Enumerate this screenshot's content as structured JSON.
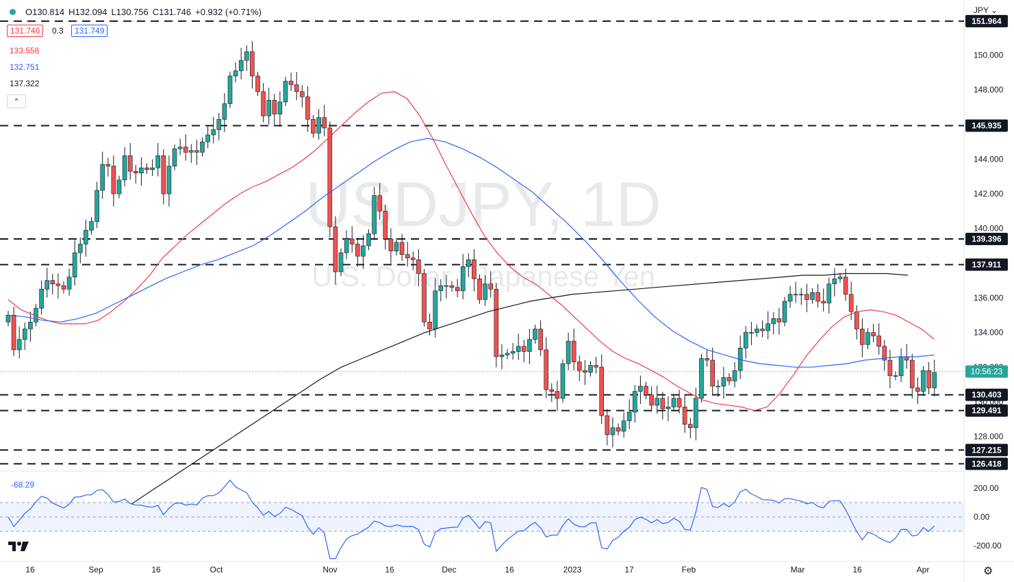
{
  "header": {
    "open": "O130.814",
    "high": "H132.094",
    "low": "L130.756",
    "close": "C131.746",
    "change": "+0.932 (+0.71%)",
    "bid": "131.746",
    "spread": "0.3",
    "ask": "131.749",
    "currency": "JPY ⌄",
    "collapse_symbol": "⌃"
  },
  "moving_averages": [
    {
      "value": "133.556",
      "color": "#f23645"
    },
    {
      "value": "132.751",
      "color": "#2962ff"
    },
    {
      "value": "137.322",
      "color": "#131722"
    }
  ],
  "watermark": {
    "symbol": "USDJPY, 1D",
    "name": "U.S. Dollar / Japanese Yen"
  },
  "countdown": "10:56:23",
  "cci_label": "-68.29",
  "colors": {
    "up": "#26a69a",
    "down": "#ef5350",
    "price_box": "#26a69a",
    "level_box": "#131722"
  },
  "chart_data": {
    "type": "candlestick",
    "y_axis": {
      "min": 126,
      "max": 152,
      "ticks": [
        "128.000",
        "130.000",
        "132.000",
        "134.000",
        "136.000",
        "138.000",
        "140.000",
        "142.000",
        "144.000",
        "146.000",
        "148.000",
        "150.000"
      ]
    },
    "x_tick_labels": [
      "16",
      "Sep",
      "16",
      "Oct",
      "Nov",
      "16",
      "Dec",
      "16",
      "2023",
      "17",
      "Feb",
      "Mar",
      "16",
      "Apr"
    ],
    "horizontal_levels": [
      "151.964",
      "145.935",
      "139.396",
      "137.911",
      "130.403",
      "129.491",
      "127.215",
      "126.418"
    ],
    "last_price": 131.746,
    "close_series": [
      135.0,
      133.0,
      133.6,
      134.2,
      134.6,
      135.4,
      136.5,
      137.0,
      136.8,
      136.7,
      136.5,
      137.2,
      138.6,
      139.1,
      139.9,
      140.4,
      142.2,
      143.7,
      143.6,
      142.0,
      142.8,
      144.2,
      143.3,
      143.2,
      143.5,
      143.4,
      143.5,
      144.2,
      142.0,
      143.6,
      144.6,
      144.7,
      144.4,
      144.5,
      144.4,
      145.0,
      145.4,
      145.7,
      146.3,
      147.2,
      148.8,
      149.1,
      149.7,
      150.2,
      148.8,
      147.9,
      146.5,
      147.4,
      146.6,
      147.3,
      148.5,
      148.3,
      147.9,
      147.6,
      146.3,
      145.5,
      146.4,
      145.8,
      140.1,
      137.5,
      138.6,
      139.4,
      139.1,
      138.4,
      139.0,
      139.7,
      141.9,
      141.0,
      139.4,
      138.7,
      139.2,
      138.5,
      138.3,
      138.2,
      137.4,
      134.6,
      134.2,
      136.4,
      136.7,
      136.7,
      136.6,
      136.4,
      137.8,
      138.2,
      137.1,
      135.9,
      136.8,
      136.5,
      132.6,
      132.7,
      132.8,
      132.9,
      133.2,
      132.9,
      133.6,
      134.2,
      133.0,
      130.7,
      130.6,
      130.2,
      132.2,
      133.5,
      132.3,
      131.8,
      131.7,
      132.1,
      132.0,
      129.2,
      128.1,
      128.5,
      128.3,
      128.9,
      129.4,
      130.6,
      130.9,
      130.4,
      129.8,
      130.2,
      129.6,
      129.7,
      130.2,
      129.7,
      128.7,
      128.5,
      130.2,
      132.5,
      132.4,
      130.9,
      130.9,
      131.4,
      131.2,
      131.8,
      133.1,
      134.0,
      134.0,
      134.2,
      134.1,
      134.5,
      134.8,
      134.6,
      135.8,
      136.2,
      136.2,
      136.2,
      135.9,
      136.3,
      135.8,
      135.7,
      136.8,
      137.1,
      137.2,
      136.2,
      135.2,
      134.2,
      133.3,
      134.0,
      133.8,
      133.2,
      132.4,
      131.5,
      131.5,
      132.6,
      132.4,
      130.8,
      130.6,
      131.8,
      130.8,
      131.7
    ],
    "sma_20": {
      "start": 0,
      "values": [
        135.9,
        135.3,
        135.0,
        134.7,
        134.5,
        134.5,
        134.5,
        134.7,
        135.2,
        135.8,
        136.5,
        137.3,
        138.3,
        139.0,
        139.7,
        140.3,
        140.9,
        141.5,
        142.0,
        142.4,
        142.7,
        143.1,
        143.5,
        144.0,
        144.6,
        145.3,
        146.0,
        146.7,
        147.3,
        147.8,
        147.9,
        147.5,
        146.5,
        145.2,
        143.7,
        142.3,
        140.9,
        139.6,
        138.6,
        137.8,
        137.2,
        136.8,
        136.2,
        135.6,
        134.9,
        134.2,
        133.5,
        132.9,
        132.5,
        132.2,
        131.8,
        131.4,
        130.9,
        130.5,
        130.1,
        129.9,
        129.8,
        129.7,
        129.5,
        129.7,
        130.5,
        131.5,
        132.6,
        133.5,
        134.3,
        134.9,
        135.2,
        135.3,
        135.2,
        135.0,
        134.6,
        134.2,
        133.6
      ]
    },
    "sma_50": {
      "start": 0,
      "values": [
        135.0,
        134.9,
        134.7,
        134.6,
        134.8,
        135.1,
        135.6,
        136.1,
        136.6,
        137.1,
        137.5,
        137.9,
        138.2,
        138.6,
        139.0,
        139.6,
        140.3,
        141.0,
        141.8,
        142.5,
        143.2,
        143.9,
        144.5,
        145.0,
        145.2,
        145.0,
        144.6,
        144.1,
        143.5,
        142.8,
        142.1,
        141.2,
        140.3,
        139.3,
        138.2,
        137.0,
        135.9,
        134.9,
        134.1,
        133.5,
        133.0,
        132.7,
        132.4,
        132.2,
        132.1,
        132.0,
        132.0,
        132.1,
        132.2,
        132.4,
        132.5,
        132.6,
        132.6,
        132.7
      ]
    },
    "sma_200": {
      "start": 0,
      "values": [
        124.1,
        124.9,
        125.7,
        126.5,
        127.3,
        128.1,
        128.9,
        129.7,
        130.5,
        131.3,
        132.0,
        132.5,
        133.0,
        133.5,
        134.0,
        134.4,
        134.8,
        135.2,
        135.5,
        135.8,
        136.0,
        136.2,
        136.3,
        136.4,
        136.5,
        136.6,
        136.7,
        136.8,
        136.9,
        137.0,
        137.1,
        137.2,
        137.3,
        137.3,
        137.4,
        137.4,
        137.4,
        137.3
      ]
    },
    "cci": {
      "axis_ticks": [
        "200.00",
        "0.00",
        "-200.00"
      ],
      "band": [
        100,
        -100
      ],
      "last": -68.29
    }
  }
}
